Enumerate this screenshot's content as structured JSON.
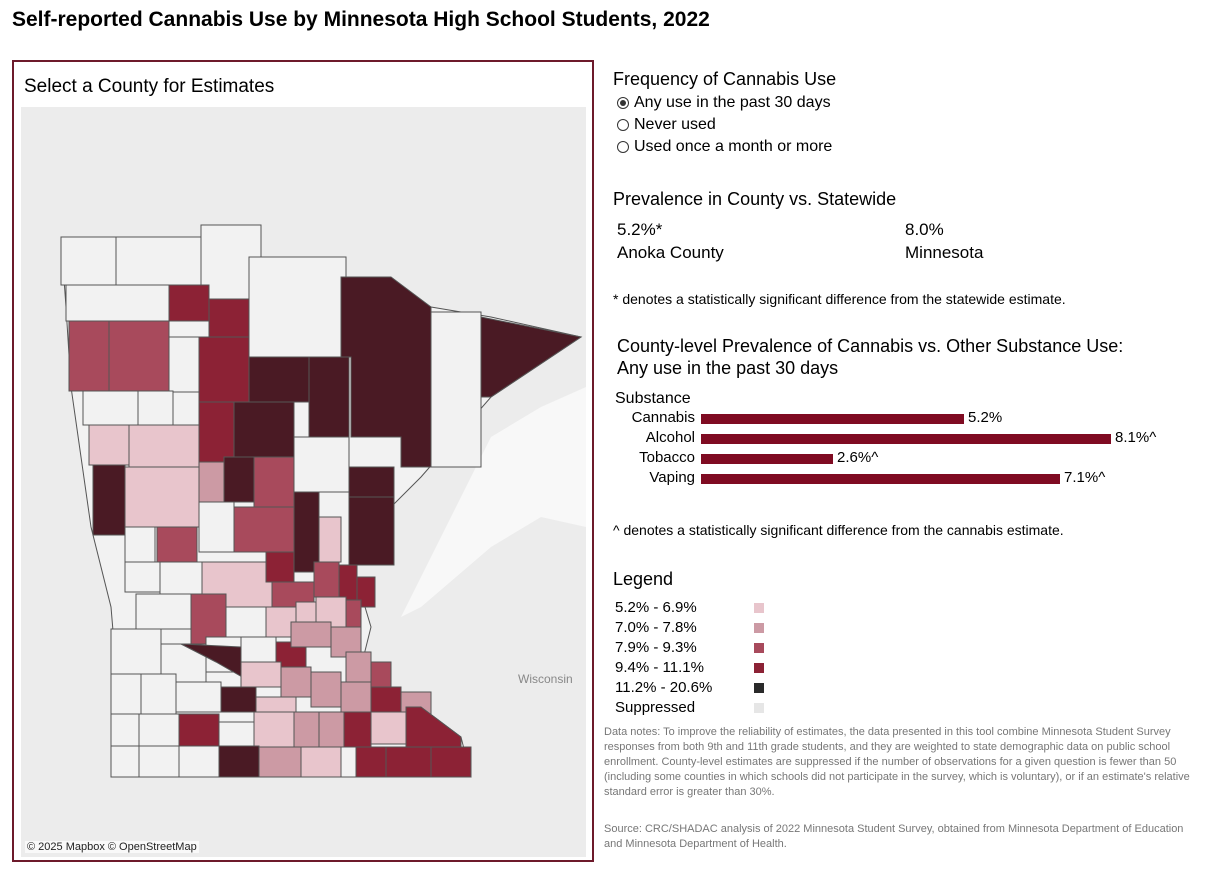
{
  "title": "Self-reported Cannabis Use by Minnesota High School Students, 2022",
  "map": {
    "heading": "Select a County for Estimates",
    "attribution": "© 2025 Mapbox  © OpenStreetMap",
    "neighbor_label": "Wisconsin",
    "selected_county": "Anoka County"
  },
  "frequency": {
    "heading": "Frequency of Cannabis Use",
    "options": [
      "Any use in the past 30 days",
      "Never used",
      "Used once a month or more"
    ],
    "selected": 0
  },
  "prevalence": {
    "heading": "Prevalence in County vs. Statewide",
    "county_value": "5.2%*",
    "county_name": "Anoka County",
    "state_value": "8.0%",
    "state_name": "Minnesota",
    "note": "* denotes a statistically significant difference from the statewide estimate."
  },
  "comparison": {
    "heading_line1": "County-level Prevalence of Cannabis vs. Other Substance Use:",
    "heading_line2": "Any use in the past 30 days",
    "axis_label": "Substance",
    "note": "^ denotes a statistically significant difference from the cannabis estimate."
  },
  "chart_data": {
    "type": "bar",
    "orientation": "horizontal",
    "categories": [
      "Cannabis",
      "Alcohol",
      "Tobacco",
      "Vaping"
    ],
    "values": [
      5.2,
      8.1,
      2.6,
      7.1
    ],
    "labels": [
      "5.2%",
      "8.1%^",
      "2.6%^",
      "7.1%^"
    ],
    "ylabel": "Substance",
    "color": "#7f0b22"
  },
  "legend": {
    "heading": "Legend",
    "items": [
      {
        "label": "5.2% - 6.9%",
        "color": "#e8c5cc"
      },
      {
        "label": "7.0% - 7.8%",
        "color": "#cc9aa4"
      },
      {
        "label": "7.9% - 9.3%",
        "color": "#a84a5c"
      },
      {
        "label": "9.4% - 11.1%",
        "color": "#8c2235"
      },
      {
        "label": "11.2% - 20.6%",
        "color": "#2a2a2a"
      },
      {
        "label": "Suppressed",
        "color": "#e6e6e6"
      }
    ]
  },
  "notes": {
    "data_notes": "Data notes: To improve the reliability of estimates, the data presented in this tool combine Minnesota Student Survey responses from both 9th and 11th grade students, and they are weighted to state demographic data on public school enrollment. County-level estimates are suppressed if the number of observations for a given question is fewer than 50 (including some counties in which schools did not participate in the survey, which is voluntary), or if an estimate's relative standard error is greater than 30%.",
    "source": "Source: CRC/SHADAC analysis of 2022 Minnesota Student Survey, obtained from Minnesota Department of Education and Minnesota Department of Health."
  }
}
